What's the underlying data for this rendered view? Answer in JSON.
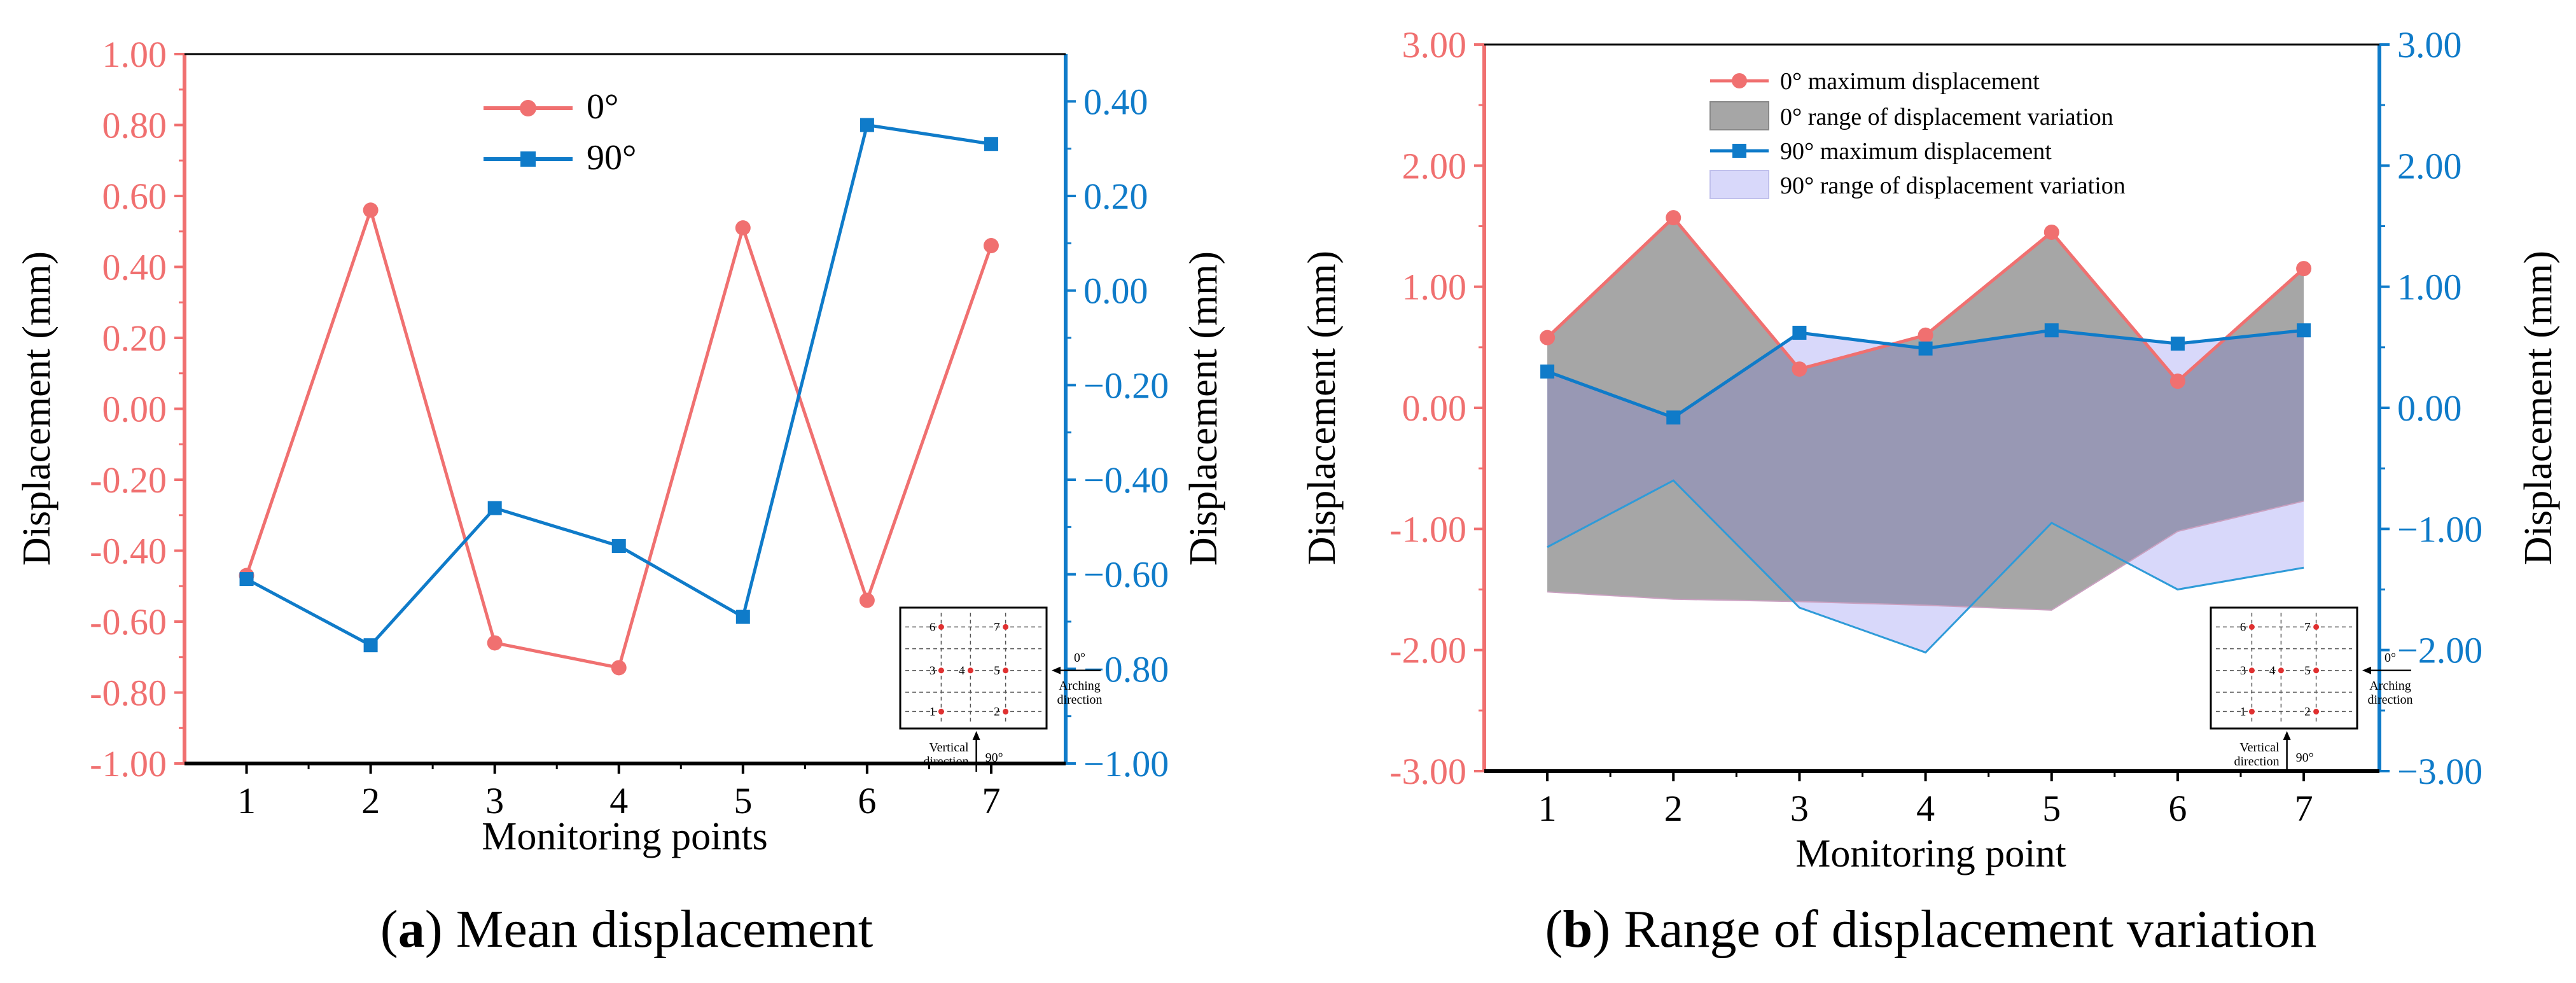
{
  "colors": {
    "red": "#f07070",
    "blue": "#0f7bc9",
    "black": "#000000",
    "gray": "#a6a6a6",
    "lavender": "#d8d8fa",
    "overlap": "#9898b4"
  },
  "chart_data": [
    {
      "type": "line",
      "caption": {
        "letter": "a",
        "text": ") Mean displacement"
      },
      "xlabel": "Monitoring points",
      "ylabel_left": "Displacement (mm)",
      "ylabel_right": "Displacement (mm)",
      "x": [
        1,
        2,
        3,
        4,
        5,
        6,
        7
      ],
      "xticks": [
        "1",
        "2",
        "3",
        "4",
        "5",
        "6",
        "7"
      ],
      "ylim_left": [
        -1.0,
        1.0
      ],
      "ylim_right": [
        -1.0,
        0.5
      ],
      "yticks_left": [
        "1.00",
        "0.80",
        "0.60",
        "0.40",
        "0.20",
        "0.00",
        "-0.20",
        "-0.40",
        "-0.60",
        "-0.80",
        "-1.00"
      ],
      "yticks_right": [
        "0.40",
        "0.20",
        "0.00",
        "−0.20",
        "−0.40",
        "−0.60",
        "−0.80",
        "−1.00"
      ],
      "series": [
        {
          "name": "0°",
          "axis": "left",
          "marker": "circle",
          "values": [
            -0.47,
            0.56,
            -0.66,
            -0.73,
            0.51,
            -0.54,
            0.46
          ]
        },
        {
          "name": "90°",
          "axis": "right",
          "marker": "square",
          "values": [
            -0.61,
            -0.75,
            -0.46,
            -0.54,
            -0.69,
            0.35,
            0.31
          ]
        }
      ],
      "inset": {
        "points": [
          "1",
          "2",
          "3",
          "4",
          "5",
          "6",
          "7"
        ],
        "label_0": "0°",
        "label_arch_1": "Arching",
        "label_arch_2": "direction",
        "label_vert_1": "Vertical",
        "label_vert_2": "direction",
        "label_90": "90°"
      }
    },
    {
      "type": "area",
      "caption": {
        "letter": "b",
        "text": ") Range of displacement variation"
      },
      "xlabel": "Monitoring point",
      "ylabel_left": "Displacement (mm)",
      "ylabel_right": "Displacement (mm)",
      "x": [
        1,
        2,
        3,
        4,
        5,
        6,
        7
      ],
      "xticks": [
        "1",
        "2",
        "3",
        "4",
        "5",
        "6",
        "7"
      ],
      "ylim": [
        -3.0,
        3.0
      ],
      "yticks_left": [
        "3.00",
        "2.00",
        "1.00",
        "0.00",
        "-1.00",
        "-2.00",
        "-3.00"
      ],
      "yticks_right": [
        "3.00",
        "2.00",
        "1.00",
        "0.00",
        "−1.00",
        "−2.00",
        "−3.00"
      ],
      "series": [
        {
          "name": "0° maximum displacement",
          "axis": "left",
          "marker": "circle",
          "values": [
            0.58,
            1.57,
            0.32,
            0.6,
            1.45,
            0.22,
            1.15
          ]
        },
        {
          "name": "0° range of displacement variation",
          "type": "band",
          "upper": [
            0.58,
            1.57,
            0.32,
            0.6,
            1.45,
            0.22,
            1.15
          ],
          "lower": [
            -1.52,
            -1.58,
            -1.6,
            -1.63,
            -1.67,
            -1.02,
            -0.77
          ]
        },
        {
          "name": "90° maximum displacement",
          "axis": "right",
          "marker": "square",
          "values": [
            0.3,
            -0.08,
            0.62,
            0.49,
            0.64,
            0.53,
            0.64
          ]
        },
        {
          "name": "90° range of displacement variation",
          "type": "band",
          "upper": [
            0.3,
            -0.08,
            0.62,
            0.49,
            0.64,
            0.53,
            0.64
          ],
          "lower": [
            -1.15,
            -0.6,
            -1.65,
            -2.02,
            -0.95,
            -1.5,
            -1.32
          ]
        }
      ],
      "inset": {
        "points": [
          "1",
          "2",
          "3",
          "4",
          "5",
          "6",
          "7"
        ],
        "label_0": "0°",
        "label_arch_1": "Arching",
        "label_arch_2": "direction",
        "label_vert_1": "Vertical",
        "label_vert_2": "direction",
        "label_90": "90°"
      }
    }
  ]
}
